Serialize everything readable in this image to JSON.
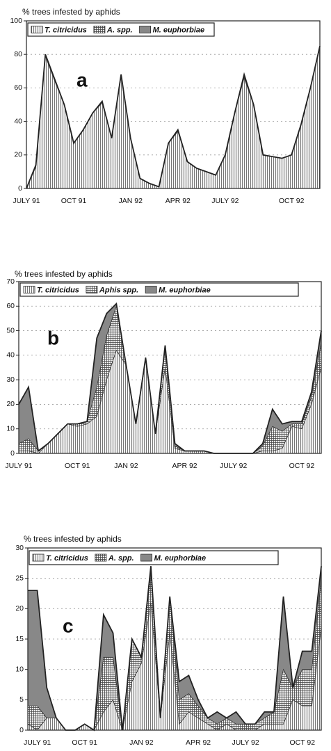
{
  "chart_data": [
    {
      "type": "area",
      "stacked": true,
      "y_label": "% trees infested by aphids",
      "annotation": "a",
      "categories": [
        "JULY 91",
        null,
        null,
        null,
        null,
        "OCT 91",
        null,
        null,
        null,
        null,
        null,
        "JAN 92",
        null,
        null,
        null,
        null,
        "APR 92",
        null,
        null,
        null,
        null,
        "JULY 92",
        null,
        null,
        null,
        null,
        null,
        null,
        "OCT 92",
        null,
        null,
        null
      ],
      "series": [
        {
          "name": "T. citricidus",
          "color": "#555555",
          "pattern": "vertical",
          "values": [
            0,
            13,
            79,
            64,
            50,
            27,
            35,
            45,
            51,
            30,
            67,
            30,
            6,
            3,
            1,
            27,
            34,
            16,
            12,
            10,
            8,
            20,
            45,
            66,
            50,
            20,
            19,
            18,
            20,
            38,
            60,
            84
          ]
        },
        {
          "name": "A. spp.",
          "color": "#444444",
          "pattern": "grid",
          "values": [
            0,
            1,
            1,
            0,
            0,
            0,
            0,
            0,
            1,
            0,
            1,
            0,
            0,
            0,
            0,
            0,
            1,
            0,
            0,
            0,
            0,
            0,
            0,
            1,
            0,
            0,
            0,
            0,
            0,
            0,
            0,
            1
          ]
        },
        {
          "name": "M. euphorbiae",
          "color": "#888888",
          "pattern": "solid",
          "values": [
            0,
            0,
            0,
            1,
            0,
            0,
            0,
            0,
            0,
            0,
            0,
            0,
            0,
            0,
            0,
            0,
            0,
            0,
            0,
            0,
            0,
            0,
            0,
            1,
            0,
            0,
            0,
            0,
            0,
            0,
            0,
            0
          ]
        }
      ],
      "ylim": [
        0,
        100
      ],
      "yticks": [
        0,
        20,
        40,
        60,
        80,
        100
      ],
      "grid": true,
      "legend": "top"
    },
    {
      "type": "area",
      "stacked": true,
      "y_label": "% trees infested by aphids",
      "annotation": "b",
      "categories": [
        "JULY 91",
        null,
        null,
        null,
        null,
        null,
        "OCT 91",
        null,
        null,
        null,
        null,
        "JAN 92",
        null,
        null,
        null,
        null,
        null,
        "APR 92",
        null,
        null,
        null,
        null,
        "JULY 92",
        null,
        null,
        null,
        null,
        null,
        null,
        "OCT 92",
        null,
        null
      ],
      "series": [
        {
          "name": "T. citricidus",
          "color": "#555555",
          "pattern": "vertical",
          "values": [
            1,
            1,
            0,
            4,
            8,
            12,
            11,
            12,
            15,
            30,
            42,
            36,
            12,
            38,
            8,
            35,
            2,
            1,
            1,
            1,
            0,
            0,
            0,
            0,
            0,
            1,
            1,
            2,
            11,
            10,
            20,
            35
          ]
        },
        {
          "name": "Aphis spp.",
          "color": "#444444",
          "pattern": "grid",
          "values": [
            3,
            5,
            1,
            0,
            0,
            0,
            1,
            1,
            12,
            18,
            18,
            0,
            0,
            1,
            0,
            8,
            1,
            0,
            0,
            0,
            0,
            0,
            0,
            0,
            0,
            2,
            10,
            7,
            1,
            2,
            3,
            10
          ]
        },
        {
          "name": "M. euphorbiae",
          "color": "#888888",
          "pattern": "solid",
          "values": [
            16,
            21,
            0,
            0,
            0,
            0,
            0,
            0,
            20,
            9,
            1,
            0,
            0,
            0,
            0,
            1,
            1,
            0,
            0,
            0,
            0,
            0,
            0,
            0,
            0,
            1,
            7,
            3,
            1,
            1,
            2,
            5
          ]
        }
      ],
      "ylim": [
        0,
        70
      ],
      "yticks": [
        0,
        10,
        20,
        30,
        40,
        50,
        60,
        70
      ],
      "grid": true,
      "legend": "top"
    },
    {
      "type": "area",
      "stacked": true,
      "y_label": "% trees infested by aphids",
      "annotation": "c",
      "categories": [
        null,
        "JULY 91",
        null,
        null,
        null,
        null,
        "OCT 91",
        null,
        null,
        null,
        null,
        null,
        "JAN 92",
        null,
        null,
        null,
        null,
        null,
        "APR 92",
        null,
        null,
        null,
        null,
        "JULY 92",
        null,
        null,
        null,
        null,
        null,
        "OCT 92",
        null,
        null
      ],
      "series": [
        {
          "name": "T. citricidus",
          "color": "#555555",
          "pattern": "vertical",
          "values": [
            1,
            0,
            2,
            2,
            0,
            0,
            1,
            0,
            3,
            5,
            0,
            8,
            11,
            21,
            2,
            16,
            1,
            3,
            2,
            1,
            0,
            1,
            0,
            0,
            0,
            1,
            1,
            1,
            5,
            4,
            4,
            17
          ]
        },
        {
          "name": "A. spp.",
          "color": "#444444",
          "pattern": "grid",
          "values": [
            3,
            4,
            0,
            0,
            0,
            0,
            0,
            0,
            9,
            7,
            0,
            7,
            1,
            5,
            0,
            6,
            4,
            3,
            2,
            1,
            1,
            1,
            1,
            1,
            1,
            1,
            2,
            9,
            2,
            6,
            6,
            8
          ]
        },
        {
          "name": "M. euphorbiae",
          "color": "#888888",
          "pattern": "solid",
          "values": [
            19,
            19,
            5,
            0,
            0,
            0,
            0,
            0,
            7,
            4,
            0,
            0,
            0,
            1,
            0,
            0,
            3,
            3,
            1,
            0,
            2,
            0,
            2,
            0,
            0,
            1,
            0,
            12,
            0,
            3,
            3,
            2
          ]
        }
      ],
      "ylim": [
        0,
        30
      ],
      "yticks": [
        0,
        5,
        10,
        15,
        20,
        25,
        30
      ],
      "grid": true,
      "legend": "top"
    }
  ]
}
